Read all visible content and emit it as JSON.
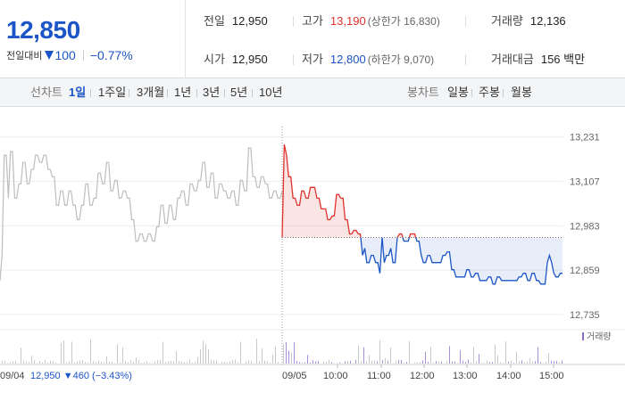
{
  "summary": {
    "price": "12,850",
    "diff_label": "전일대비",
    "diff_value": "100",
    "diff_rate": "−0.77%",
    "prev_label": "전일",
    "prev_value": "12,950",
    "open_label": "시가",
    "open_value": "12,950",
    "high_label": "고가",
    "high_value": "13,190",
    "upper_limit": "(상한가 16,830)",
    "low_label": "저가",
    "low_value": "12,800",
    "lower_limit": "(하한가 9,070)",
    "volume_label": "거래량",
    "volume_value": "12,136",
    "amount_label": "거래대금",
    "amount_value": "156 백만"
  },
  "period_bar": {
    "line_label": "선차트",
    "line_items": [
      "1일",
      "1주일",
      "3개월",
      "1년",
      "3년",
      "5년",
      "10년"
    ],
    "active_item": "1일",
    "candle_label": "봉차트",
    "candle_items": [
      "일봉",
      "주봉",
      "월봉"
    ]
  },
  "colors": {
    "up": "#e0322c",
    "down": "#1b55c7",
    "prev_day": "#bdbdbd"
  },
  "chart_data": {
    "type": "line",
    "ylim": [
      12700,
      13260
    ],
    "y_ticks": [
      "13,231",
      "13,107",
      "12,983",
      "12,859",
      "12,735"
    ],
    "y_tick_values": [
      13231,
      13107,
      12983,
      12859,
      12735
    ],
    "base_price": 12950,
    "x_labels": [
      "09/04",
      "09/05",
      "10:00",
      "11:00",
      "12:00",
      "13:00",
      "14:00",
      "15:00"
    ],
    "prev_day_note": "12,950 ▼460 (−3.43%)",
    "volume_legend": "거래량",
    "series": [
      {
        "values": [
          12830,
          12900,
          13180,
          13180,
          13060,
          13190,
          13190,
          13060,
          13060,
          13100,
          13100,
          13160,
          13160,
          13100,
          13100,
          13140,
          13140,
          13180,
          13180,
          13160,
          13160,
          13180,
          13180,
          13140,
          13140,
          13120,
          13120,
          13040,
          13040,
          13080,
          13080,
          13040,
          13040,
          13080,
          13080,
          13040,
          13040,
          13000,
          13000,
          13040,
          13040,
          13100,
          13100,
          13040,
          13040,
          13060,
          13060,
          13130,
          13130,
          13100,
          13100,
          13160,
          13160,
          13080,
          13080,
          13110,
          13110,
          13060,
          13060,
          13080,
          13080,
          13060,
          13060,
          13000,
          13000,
          12940,
          12940,
          12960,
          12960,
          12940,
          12940,
          12960,
          12960,
          12940,
          12940,
          12980,
          12980,
          13040,
          13040,
          12990,
          12990,
          13040,
          13040,
          13000,
          13000,
          13060,
          13060,
          13080,
          13080,
          13040,
          13040,
          13100,
          13100,
          13080,
          13080,
          13110,
          13110,
          13160,
          13160,
          13090,
          13090,
          13130,
          13130,
          13060,
          13060,
          13100,
          13100,
          13080,
          13080,
          13060,
          13060,
          13080,
          13080,
          13040,
          13040,
          13110,
          13110,
          13080,
          13080,
          13200,
          13200,
          13120,
          13120,
          13090,
          13090,
          13120,
          13120,
          13100,
          13100,
          13060,
          13060,
          13080,
          13080,
          13060,
          13060,
          13080
        ]
      },
      {
        "values": [
          12950,
          13210,
          13180,
          13120,
          13120,
          13060,
          13060,
          13040,
          13040,
          13080,
          13080,
          13060,
          13060,
          13090,
          13090,
          13090,
          13060,
          13060,
          13030,
          13030,
          13030,
          13000,
          13000,
          13010,
          13010,
          13070,
          13070,
          13060,
          13060,
          13000,
          13000,
          12960,
          12960,
          12970,
          12970,
          12960,
          12960,
          12900,
          12920,
          12880,
          12880,
          12900,
          12900,
          12880,
          12880,
          12850,
          12950,
          12880,
          12900,
          12900,
          12920,
          12880,
          12880,
          12950,
          12960,
          12960,
          12940,
          12940,
          12940,
          12960,
          12960,
          12960,
          12940,
          12940,
          12900,
          12880,
          12880,
          12900,
          12900,
          12880,
          12880,
          12880,
          12880,
          12880,
          12900,
          12900,
          12910,
          12910,
          12860,
          12860,
          12840,
          12840,
          12840,
          12840,
          12840,
          12860,
          12860,
          12840,
          12840,
          12850,
          12850,
          12830,
          12830,
          12830,
          12830,
          12840,
          12840,
          12820,
          12820,
          12840,
          12840,
          12830,
          12830,
          12830,
          12830,
          12830,
          12830,
          12830,
          12830,
          12840,
          12840,
          12850,
          12850,
          12830,
          12830,
          12850,
          12850,
          12830,
          12830,
          12820,
          12820,
          12820,
          12880,
          12900,
          12880,
          12850,
          12840,
          12840,
          12850,
          12850
        ]
      }
    ]
  }
}
